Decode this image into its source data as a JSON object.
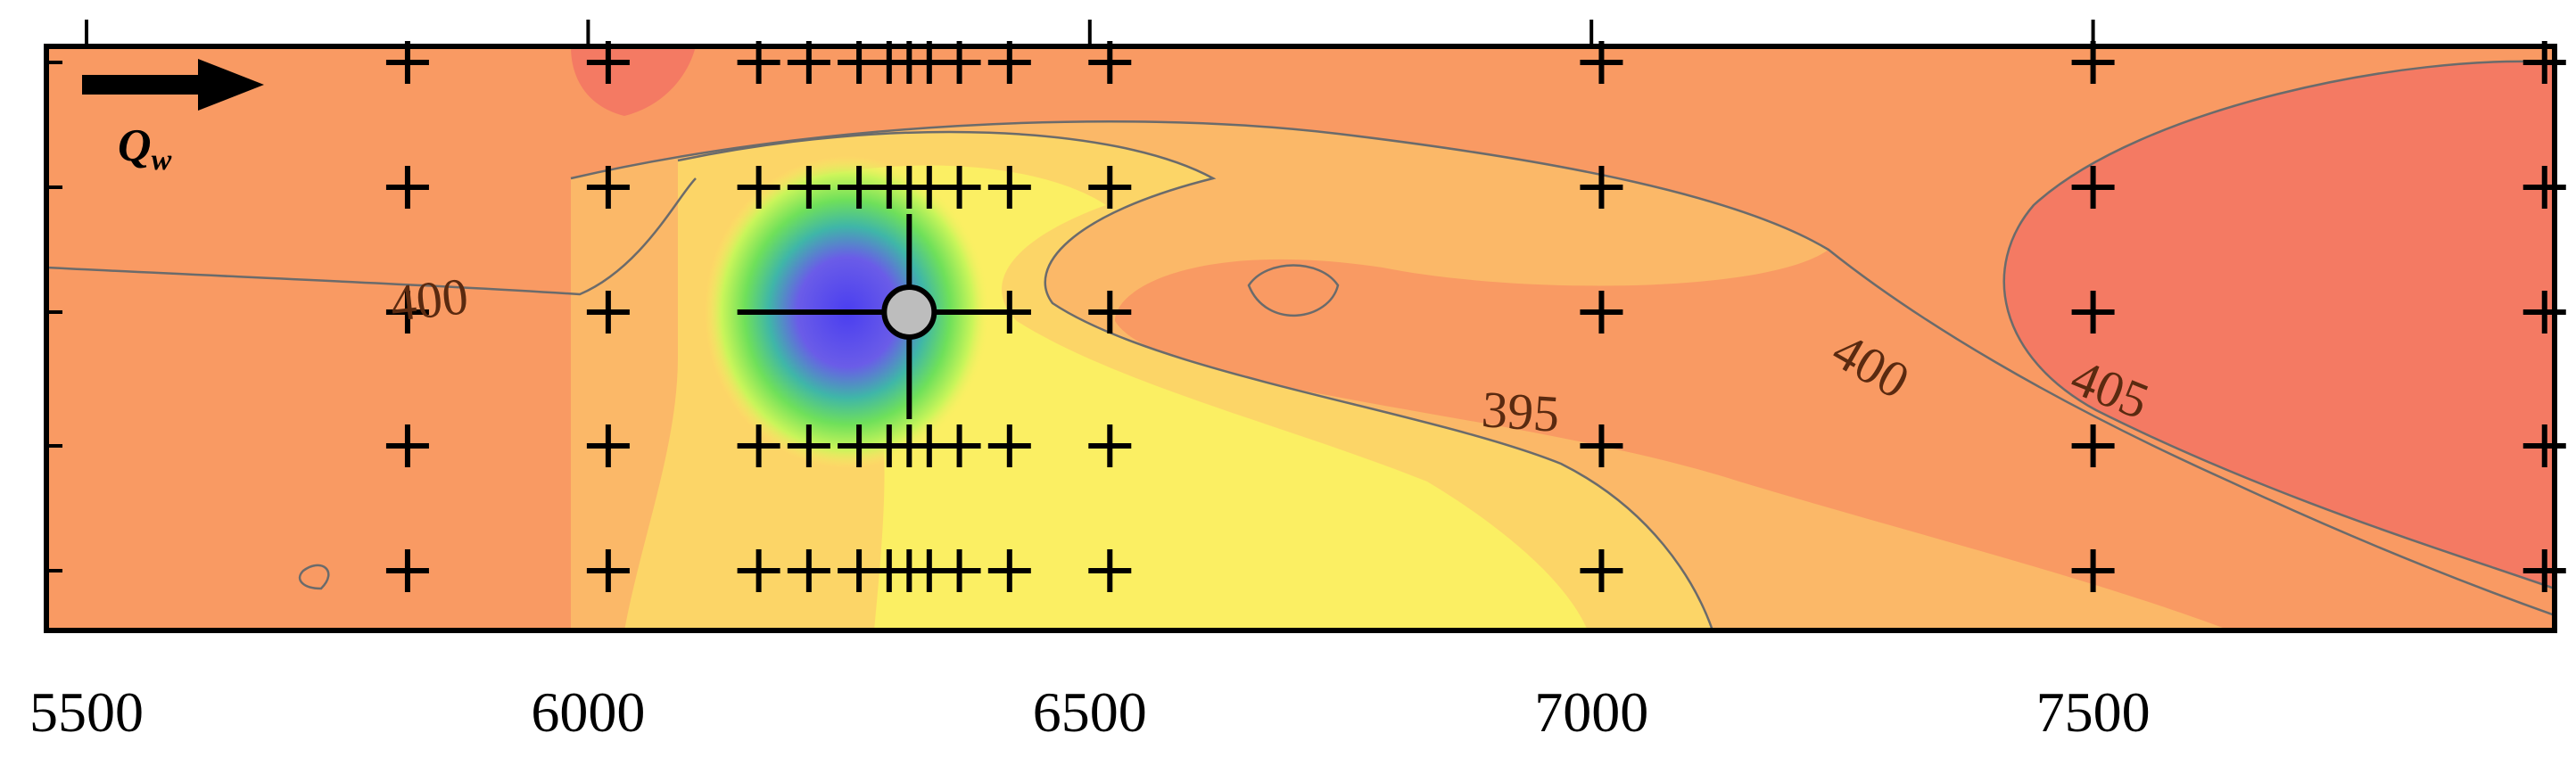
{
  "chart_data": {
    "type": "contour",
    "title": "",
    "xlabel": "",
    "ylabel": "",
    "xlim": [
      5460,
      7960
    ],
    "x_ticks": [
      5500,
      6000,
      6500,
      7000,
      7500
    ],
    "contour_labels": [
      "400",
      "395",
      "400",
      "405"
    ],
    "flow_label": "Q",
    "flow_label_subscript": "w",
    "grid_columns": [
      5820,
      6020,
      6170,
      6220,
      6270,
      6300,
      6320,
      6340,
      6370,
      6420,
      6520,
      7010,
      7500,
      7950
    ],
    "grid_rows": [
      1,
      2,
      3,
      4,
      5
    ],
    "well_x": 6320,
    "colors": {
      "high": "#f47a63",
      "mid_high": "#f99a63",
      "mid": "#fbb868",
      "low": "#fcd567",
      "lowest": "#fbef63",
      "green": "#8ee84e",
      "blue": "#5a4ce0",
      "well_fill": "#bdbdbd"
    }
  }
}
